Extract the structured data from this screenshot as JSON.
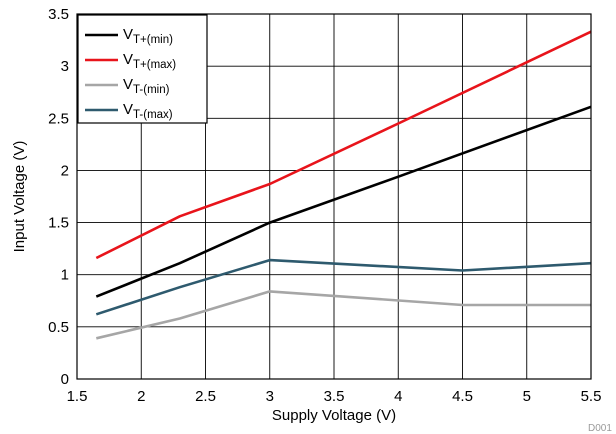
{
  "chart_data": {
    "type": "line",
    "title": "",
    "xlabel": "Supply Voltage (V)",
    "ylabel": "Input Voltage (V)",
    "xlim": [
      1.5,
      5.5
    ],
    "ylim": [
      0,
      3.5
    ],
    "xticks": [
      1.5,
      2,
      2.5,
      3,
      3.5,
      4,
      4.5,
      5,
      5.5
    ],
    "xtick_labels": [
      "1.5",
      "2",
      "2.5",
      "3",
      "3.5",
      "4",
      "4.5",
      "5",
      "5.5"
    ],
    "yticks": [
      0,
      0.5,
      1,
      1.5,
      2,
      2.5,
      3,
      3.5
    ],
    "ytick_labels": [
      "0",
      "0.5",
      "1",
      "1.5",
      "2",
      "2.5",
      "3",
      "3.5"
    ],
    "grid": true,
    "legend_position": "top-left",
    "watermark": "D001",
    "series": [
      {
        "name": "VT+(min)",
        "legend_main": "V",
        "legend_sub": "T+(min)",
        "color": "#000000",
        "x": [
          1.65,
          2.3,
          3.0,
          4.0,
          5.5
        ],
        "y": [
          0.79,
          1.11,
          1.5,
          1.94,
          2.61
        ]
      },
      {
        "name": "VT+(max)",
        "legend_main": "V",
        "legend_sub": "T+(max)",
        "color": "#e8141b",
        "x": [
          1.65,
          2.3,
          3.0,
          4.0,
          5.5
        ],
        "y": [
          1.16,
          1.56,
          1.87,
          2.45,
          3.33
        ]
      },
      {
        "name": "VT-(min)",
        "legend_main": "V",
        "legend_sub": "T-(min)",
        "color": "#a6a6a6",
        "x": [
          1.65,
          2.3,
          3.0,
          4.5,
          5.5
        ],
        "y": [
          0.39,
          0.58,
          0.84,
          0.71,
          0.71
        ]
      },
      {
        "name": "VT-(max)",
        "legend_main": "V",
        "legend_sub": "T-(max)",
        "color": "#2e5a6e",
        "x": [
          1.65,
          2.3,
          3.0,
          4.5,
          5.5
        ],
        "y": [
          0.62,
          0.88,
          1.14,
          1.04,
          1.11
        ]
      }
    ]
  }
}
